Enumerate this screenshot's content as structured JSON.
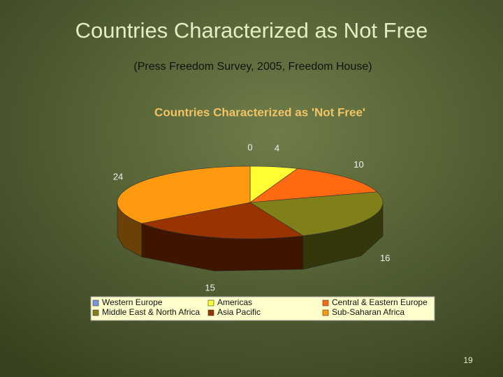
{
  "slide": {
    "title": "Countries Characterized as Not Free",
    "subtitle": "(Press Freedom Survey, 2005, Freedom House)",
    "page_number": "19"
  },
  "chart_data": {
    "type": "pie",
    "title": "Countries Characterized as 'Not Free'",
    "categories": [
      "Western Europe",
      "Americas",
      "Central & Eastern Europe",
      "Middle East & North Africa",
      "Asia Pacific",
      "Sub-Saharan Africa"
    ],
    "values": [
      0,
      4,
      10,
      16,
      15,
      24
    ],
    "colors": [
      "#7a96e0",
      "#ffff33",
      "#ff6a10",
      "#80801a",
      "#993300",
      "#ff9a10"
    ],
    "legend": "bottom"
  }
}
